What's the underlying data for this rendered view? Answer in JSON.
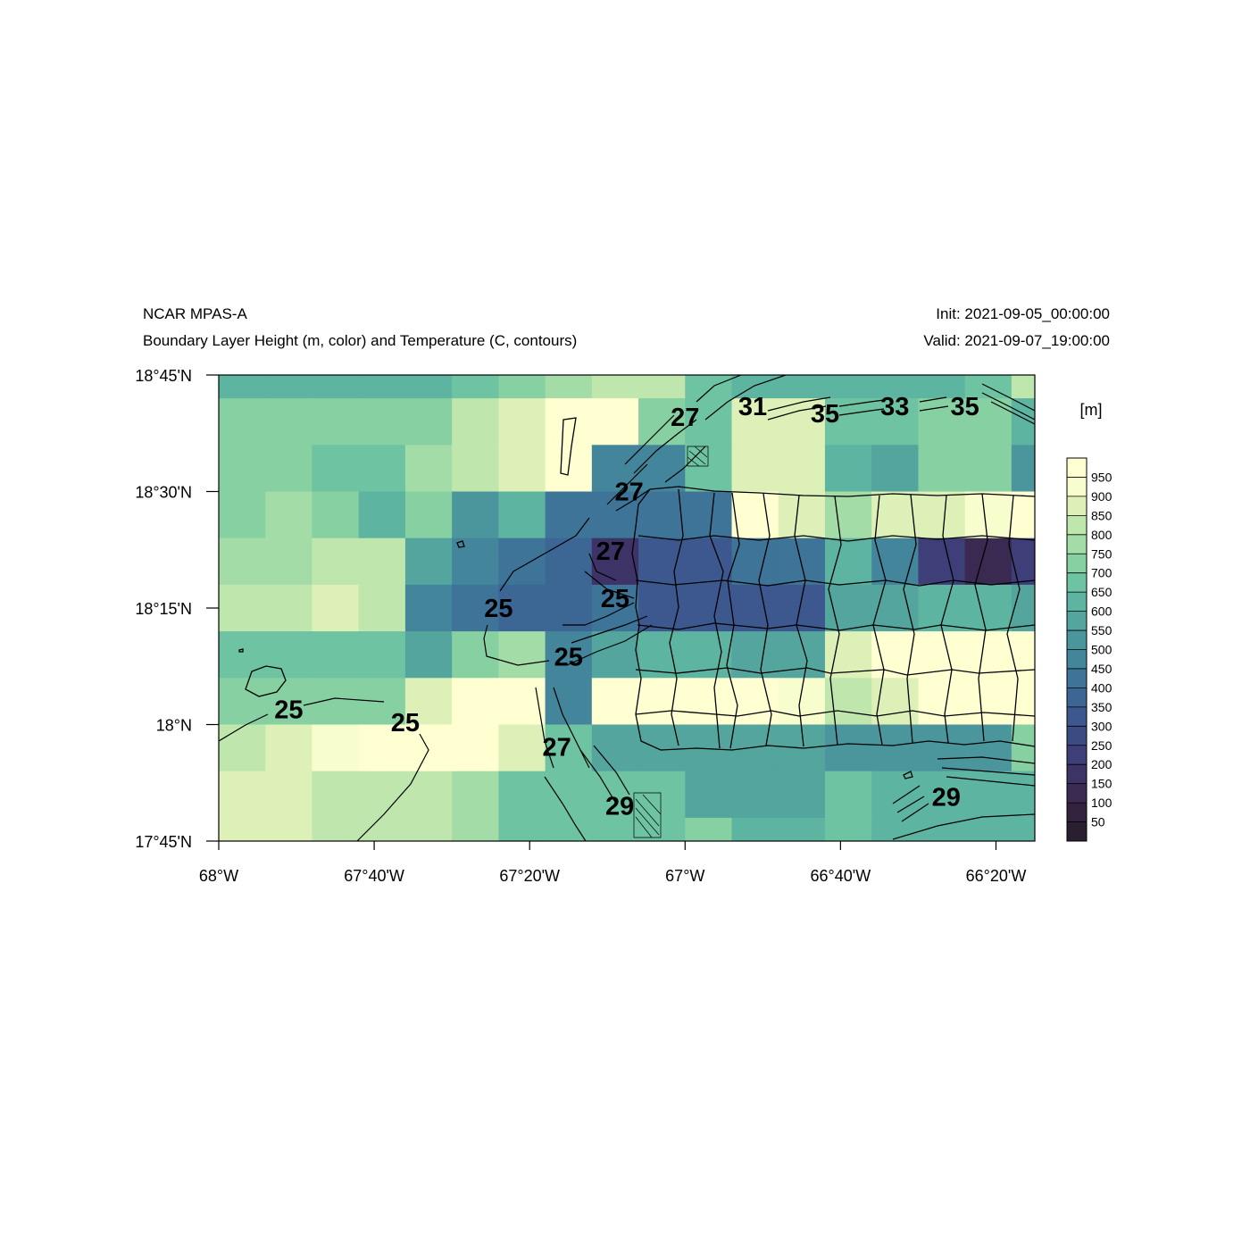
{
  "header": {
    "title_left": "NCAR MPAS-A",
    "subtitle_left": "Boundary Layer Height (m, color) and Temperature (C, contours)",
    "title_right": "Init: 2021-09-05_00:00:00",
    "subtitle_right": "Valid: 2021-09-07_19:00:00"
  },
  "map": {
    "lon_range": [
      -68.0,
      -66.25
    ],
    "lat_range": [
      17.75,
      18.75
    ],
    "lon_ticks": [
      {
        "value": -68.0,
        "label": "68°W"
      },
      {
        "value": -67.6667,
        "label": "67°40'W"
      },
      {
        "value": -67.3333,
        "label": "67°20'W"
      },
      {
        "value": -67.0,
        "label": "67°W"
      },
      {
        "value": -66.6667,
        "label": "66°40'W"
      },
      {
        "value": -66.3333,
        "label": "66°20'W"
      }
    ],
    "lat_ticks": [
      {
        "value": 18.75,
        "label": "18°45'N"
      },
      {
        "value": 18.5,
        "label": "18°30'N"
      },
      {
        "value": 18.25,
        "label": "18°15'N"
      },
      {
        "value": 18.0,
        "label": "18°N"
      },
      {
        "value": 17.75,
        "label": "17°45'N"
      }
    ],
    "cell_lon_edges": [
      -68.0,
      -67.9,
      -67.8,
      -67.7,
      -67.6,
      -67.5,
      -67.4,
      -67.3,
      -67.2,
      -67.1,
      -67.0,
      -66.9,
      -66.8,
      -66.7,
      -66.6,
      -66.5,
      -66.4,
      -66.3,
      -66.25
    ],
    "cell_lat_edges": [
      18.75,
      18.7,
      18.6,
      18.5,
      18.4,
      18.3,
      18.2,
      18.1,
      18.0,
      17.9,
      17.8,
      17.75
    ],
    "pblh_grid": [
      [
        620,
        620,
        620,
        620,
        620,
        650,
        700,
        780,
        840,
        800,
        680,
        620,
        620,
        620,
        620,
        620,
        680,
        800
      ],
      [
        720,
        720,
        720,
        720,
        720,
        820,
        880,
        990,
        990,
        740,
        650,
        880,
        880,
        680,
        680,
        720,
        720,
        600
      ],
      [
        700,
        700,
        650,
        650,
        760,
        840,
        880,
        990,
        450,
        450,
        650,
        870,
        870,
        640,
        560,
        730,
        730,
        540
      ],
      [
        700,
        760,
        700,
        620,
        700,
        540,
        620,
        400,
        400,
        400,
        400,
        980,
        880,
        780,
        880,
        870,
        930,
        980
      ],
      [
        760,
        760,
        820,
        820,
        580,
        480,
        420,
        360,
        180,
        300,
        300,
        400,
        400,
        600,
        480,
        240,
        140,
        240
      ],
      [
        820,
        820,
        880,
        820,
        450,
        420,
        390,
        390,
        420,
        330,
        330,
        310,
        310,
        560,
        560,
        640,
        620,
        560
      ],
      [
        650,
        650,
        650,
        650,
        560,
        700,
        780,
        460,
        560,
        600,
        620,
        560,
        560,
        880,
        980,
        980,
        980,
        980
      ],
      [
        740,
        740,
        740,
        740,
        860,
        990,
        990,
        480,
        990,
        990,
        990,
        990,
        900,
        820,
        860,
        990,
        990,
        990
      ],
      [
        820,
        860,
        920,
        990,
        990,
        990,
        880,
        650,
        560,
        560,
        560,
        560,
        580,
        540,
        540,
        540,
        540,
        700
      ],
      [
        860,
        860,
        820,
        820,
        820,
        780,
        680,
        650,
        650,
        650,
        580,
        580,
        580,
        650,
        620,
        600,
        600,
        640
      ],
      [
        860,
        860,
        800,
        800,
        800,
        780,
        680,
        650,
        650,
        650,
        740,
        620,
        620,
        650,
        620,
        600,
        600,
        640
      ]
    ],
    "contour_labels": [
      {
        "text": "25",
        "lon": -67.85,
        "lat": 18.033
      },
      {
        "text": "25",
        "lon": -67.6,
        "lat": 18.005
      },
      {
        "text": "25",
        "lon": -67.4,
        "lat": 18.25
      },
      {
        "text": "25",
        "lon": -67.15,
        "lat": 18.271
      },
      {
        "text": "25",
        "lon": -67.25,
        "lat": 18.146
      },
      {
        "text": "27",
        "lon": -67.16,
        "lat": 18.373
      },
      {
        "text": "27",
        "lon": -67.12,
        "lat": 18.5
      },
      {
        "text": "27",
        "lon": -67.0,
        "lat": 18.66
      },
      {
        "text": "27",
        "lon": -67.275,
        "lat": 17.952
      },
      {
        "text": "29",
        "lon": -67.14,
        "lat": 17.826
      },
      {
        "text": "29",
        "lon": -66.44,
        "lat": 17.845
      },
      {
        "text": "31",
        "lon": -66.855,
        "lat": 18.683
      },
      {
        "text": "35",
        "lon": -66.7,
        "lat": 18.668
      },
      {
        "text": "33",
        "lon": -66.55,
        "lat": 18.683
      },
      {
        "text": "35",
        "lon": -66.4,
        "lat": 18.683
      }
    ]
  },
  "colorbar": {
    "unit_label": "[m]",
    "levels": [
      "50",
      "100",
      "150",
      "200",
      "250",
      "300",
      "350",
      "400",
      "450",
      "500",
      "550",
      "600",
      "650",
      "700",
      "750",
      "800",
      "850",
      "900",
      "950"
    ],
    "colors": [
      "#2a1f30",
      "#33223e",
      "#3a2a52",
      "#3d3366",
      "#3e3e79",
      "#3d4b85",
      "#3c588e",
      "#3c6694",
      "#3d7497",
      "#43859a",
      "#4b969c",
      "#53a59e",
      "#5db4a0",
      "#6dc3a2",
      "#86d0a2",
      "#a3dca6",
      "#bfe6ad",
      "#dcf0b8",
      "#f8fdcd",
      "#ffffd1"
    ]
  }
}
